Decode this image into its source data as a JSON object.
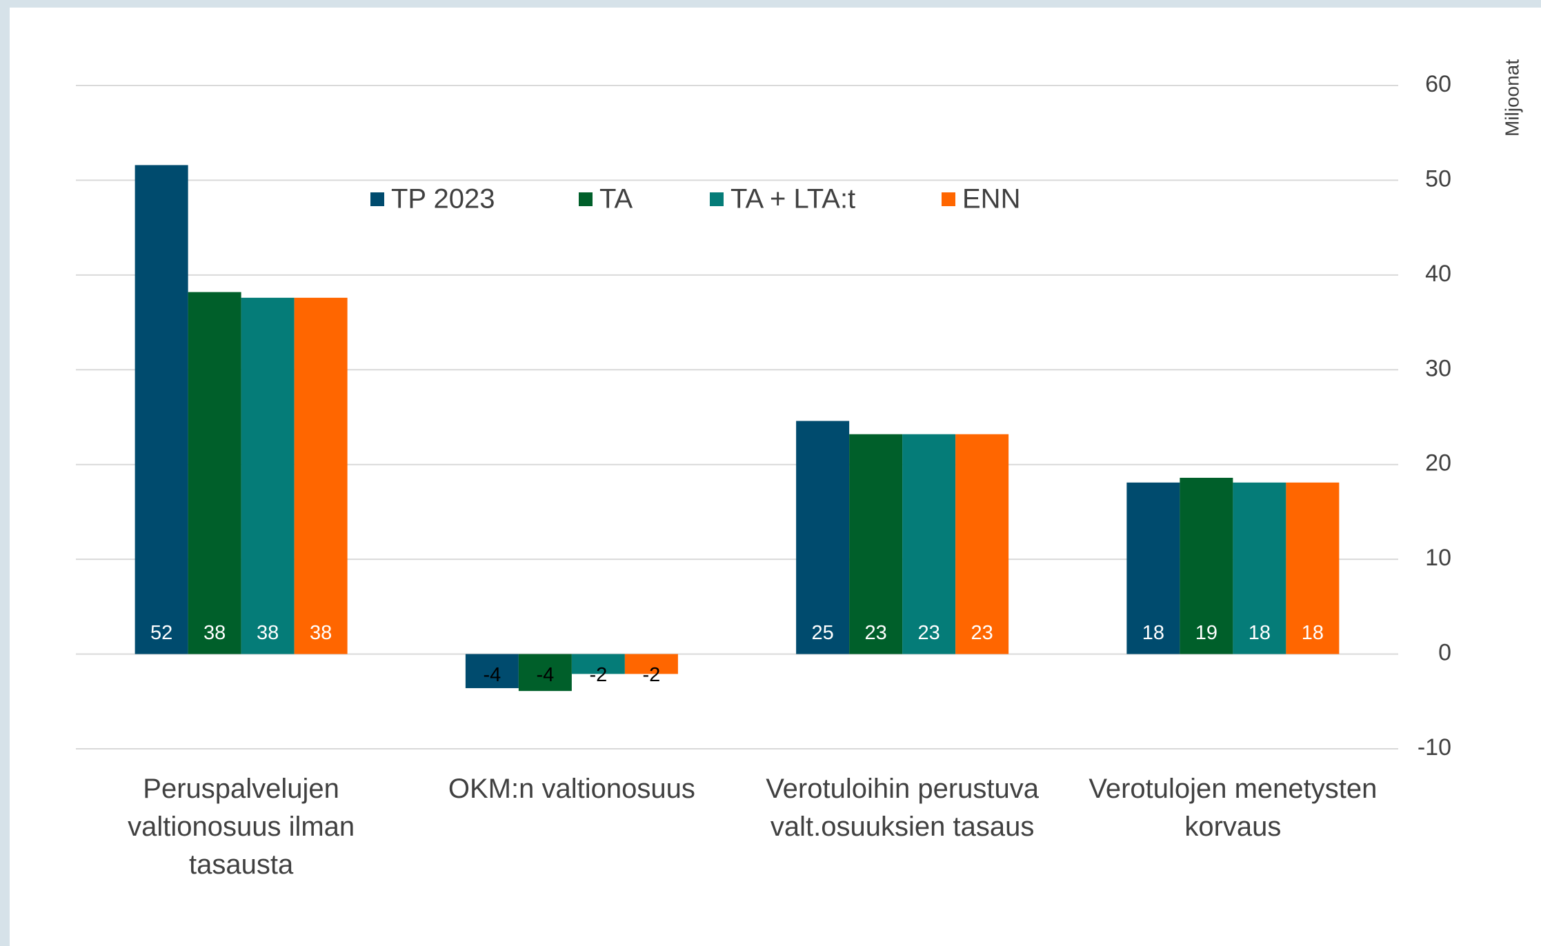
{
  "chart_data": {
    "type": "bar",
    "y_axis_label": "Miljoonat",
    "categories": [
      "Peruspalvelujen valtionosuus ilman tasausta",
      "OKM:n valtionosuus",
      "Verotuloihin perustuva valt.osuuksien tasaus",
      "Verotulojen menetysten korvaus"
    ],
    "series": [
      {
        "name": "TP 2023",
        "color": "#004b6e",
        "values": [
          51.6,
          -3.6,
          24.6,
          18.1
        ],
        "value_labels": [
          "52",
          "-4",
          "25",
          "18"
        ]
      },
      {
        "name": "TA",
        "color": "#005f2a",
        "values": [
          38.2,
          -3.9,
          23.2,
          18.6
        ],
        "value_labels": [
          "38",
          "-4",
          "23",
          "19"
        ]
      },
      {
        "name": "TA +  LTA:t",
        "color": "#057c78",
        "values": [
          37.6,
          -2.1,
          23.2,
          18.1
        ],
        "value_labels": [
          "38",
          "-2",
          "23",
          "18"
        ]
      },
      {
        "name": "ENN",
        "color": "#ff6600",
        "values": [
          37.6,
          -2.1,
          23.2,
          18.1
        ],
        "value_labels": [
          "38",
          "-2",
          "23",
          "18"
        ]
      }
    ],
    "ylim": [
      -10,
      60
    ],
    "yticks": [
      -10,
      0,
      10,
      20,
      30,
      40,
      50,
      60
    ],
    "grid": true,
    "legend": "top"
  }
}
